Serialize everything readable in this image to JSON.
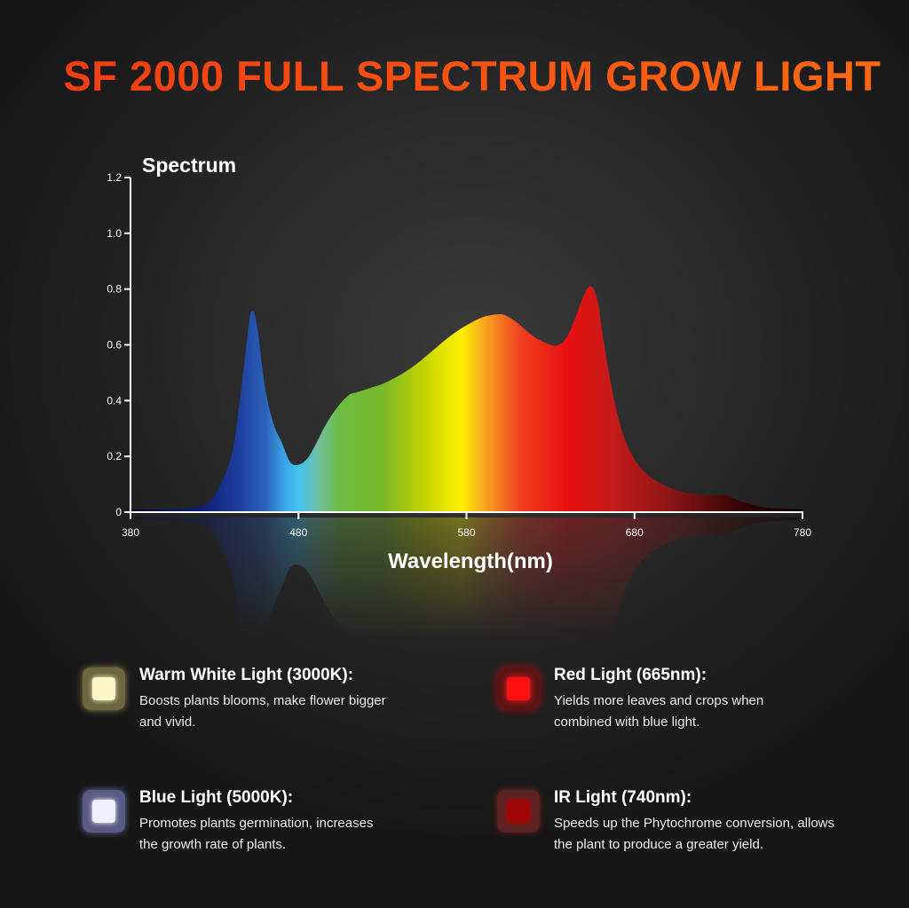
{
  "title": "SF 2000 FULL SPECTRUM GROW LIGHT",
  "chart_data": {
    "type": "area",
    "title": "Spectrum",
    "xlabel": "Wavelength(nm)",
    "ylabel": "",
    "xlim": [
      380,
      780
    ],
    "ylim": [
      0,
      1.2
    ],
    "x_ticks": [
      "380",
      "480",
      "580",
      "680",
      "780"
    ],
    "y_ticks": [
      "0",
      "0.2",
      "0.4",
      "0.6",
      "0.8",
      "1.0",
      "1.2"
    ],
    "grid": false,
    "fill": "visible-spectrum gradient",
    "x": [
      380,
      400,
      420,
      430,
      440,
      445,
      450,
      452,
      455,
      460,
      465,
      470,
      475,
      480,
      485,
      490,
      495,
      500,
      505,
      510,
      515,
      520,
      525,
      530,
      540,
      550,
      560,
      570,
      580,
      590,
      600,
      605,
      610,
      620,
      630,
      635,
      640,
      645,
      650,
      654,
      658,
      662,
      668,
      675,
      685,
      700,
      715,
      730,
      735,
      745,
      760,
      780
    ],
    "y": [
      0.01,
      0.01,
      0.02,
      0.06,
      0.2,
      0.4,
      0.65,
      0.72,
      0.68,
      0.45,
      0.32,
      0.25,
      0.18,
      0.17,
      0.19,
      0.24,
      0.3,
      0.35,
      0.39,
      0.42,
      0.43,
      0.44,
      0.45,
      0.46,
      0.49,
      0.53,
      0.58,
      0.63,
      0.67,
      0.7,
      0.71,
      0.7,
      0.68,
      0.63,
      0.6,
      0.6,
      0.63,
      0.7,
      0.78,
      0.81,
      0.76,
      0.6,
      0.4,
      0.25,
      0.15,
      0.09,
      0.065,
      0.06,
      0.06,
      0.035,
      0.015,
      0.01
    ]
  },
  "legend": [
    {
      "title": "Warm White Light (3000K):",
      "desc": "Boosts plants blooms, make flower bigger and vivid.",
      "icon": "warm-white-led-icon",
      "color": "#fdf6c8"
    },
    {
      "title": "Red Light (665nm):",
      "desc": "Yields more leaves and crops when combined with blue light.",
      "icon": "red-led-icon",
      "color": "#ff1010"
    },
    {
      "title": "Blue Light (5000K):",
      "desc": "Promotes plants germination, increases the growth rate of plants.",
      "icon": "blue-led-icon",
      "color": "#eef0ff"
    },
    {
      "title": "IR Light (740nm):",
      "desc": "Speeds up the Phytochrome conversion, allows the plant to produce a greater yield.",
      "icon": "ir-led-icon",
      "color": "#a00808"
    }
  ]
}
